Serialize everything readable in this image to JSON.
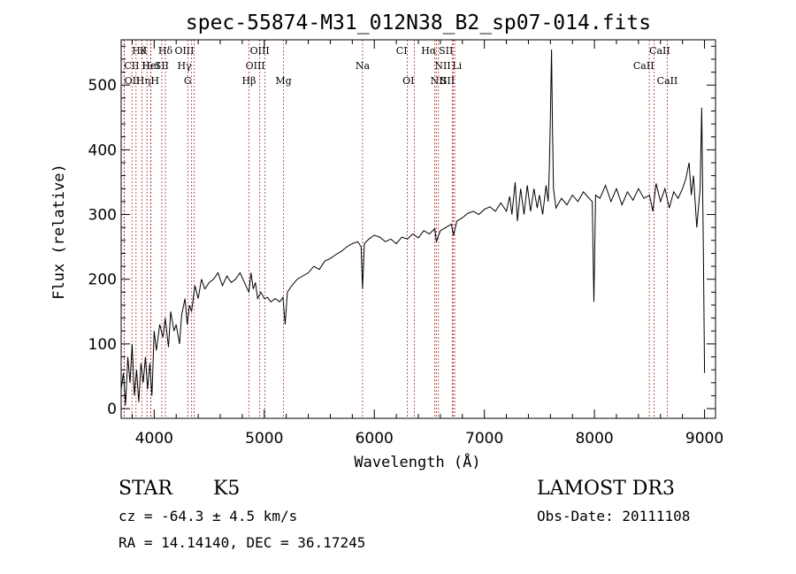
{
  "chart_data": {
    "type": "line",
    "title": "spec-55874-M31_012N38_B2_sp07-014.fits",
    "xlabel": "Wavelength (Å)",
    "ylabel": "Flux (relative)",
    "xlim": [
      3700,
      9100
    ],
    "ylim": [
      -15,
      570
    ],
    "xticks": [
      4000,
      5000,
      6000,
      7000,
      8000,
      9000
    ],
    "yticks": [
      0,
      100,
      200,
      300,
      400,
      500
    ],
    "grid": false,
    "series": [
      {
        "points": [
          [
            3700,
            30
          ],
          [
            3720,
            55
          ],
          [
            3740,
            5
          ],
          [
            3760,
            80
          ],
          [
            3780,
            40
          ],
          [
            3800,
            100
          ],
          [
            3820,
            20
          ],
          [
            3840,
            60
          ],
          [
            3860,
            10
          ],
          [
            3880,
            70
          ],
          [
            3900,
            40
          ],
          [
            3920,
            80
          ],
          [
            3940,
            30
          ],
          [
            3960,
            70
          ],
          [
            3980,
            20
          ],
          [
            4000,
            120
          ],
          [
            4020,
            90
          ],
          [
            4050,
            130
          ],
          [
            4080,
            110
          ],
          [
            4100,
            140
          ],
          [
            4130,
            95
          ],
          [
            4150,
            150
          ],
          [
            4180,
            120
          ],
          [
            4200,
            130
          ],
          [
            4230,
            100
          ],
          [
            4250,
            145
          ],
          [
            4280,
            170
          ],
          [
            4300,
            130
          ],
          [
            4320,
            160
          ],
          [
            4340,
            150
          ],
          [
            4370,
            190
          ],
          [
            4400,
            170
          ],
          [
            4430,
            200
          ],
          [
            4460,
            185
          ],
          [
            4500,
            195
          ],
          [
            4540,
            200
          ],
          [
            4580,
            210
          ],
          [
            4620,
            190
          ],
          [
            4660,
            205
          ],
          [
            4700,
            195
          ],
          [
            4740,
            200
          ],
          [
            4780,
            210
          ],
          [
            4820,
            195
          ],
          [
            4860,
            180
          ],
          [
            4880,
            210
          ],
          [
            4900,
            185
          ],
          [
            4920,
            195
          ],
          [
            4940,
            170
          ],
          [
            4970,
            180
          ],
          [
            5000,
            170
          ],
          [
            5030,
            172
          ],
          [
            5060,
            165
          ],
          [
            5100,
            170
          ],
          [
            5140,
            165
          ],
          [
            5170,
            172
          ],
          [
            5190,
            130
          ],
          [
            5210,
            180
          ],
          [
            5250,
            190
          ],
          [
            5300,
            200
          ],
          [
            5350,
            205
          ],
          [
            5400,
            210
          ],
          [
            5450,
            220
          ],
          [
            5500,
            215
          ],
          [
            5550,
            228
          ],
          [
            5600,
            232
          ],
          [
            5650,
            238
          ],
          [
            5700,
            243
          ],
          [
            5750,
            250
          ],
          [
            5800,
            255
          ],
          [
            5850,
            258
          ],
          [
            5880,
            250
          ],
          [
            5893,
            185
          ],
          [
            5910,
            255
          ],
          [
            5950,
            262
          ],
          [
            6000,
            268
          ],
          [
            6050,
            265
          ],
          [
            6100,
            258
          ],
          [
            6150,
            262
          ],
          [
            6200,
            255
          ],
          [
            6250,
            265
          ],
          [
            6300,
            262
          ],
          [
            6350,
            270
          ],
          [
            6400,
            264
          ],
          [
            6450,
            275
          ],
          [
            6500,
            270
          ],
          [
            6550,
            278
          ],
          [
            6563,
            258
          ],
          [
            6600,
            275
          ],
          [
            6650,
            280
          ],
          [
            6700,
            285
          ],
          [
            6720,
            268
          ],
          [
            6750,
            290
          ],
          [
            6800,
            295
          ],
          [
            6850,
            302
          ],
          [
            6900,
            305
          ],
          [
            6950,
            300
          ],
          [
            7000,
            308
          ],
          [
            7050,
            312
          ],
          [
            7100,
            305
          ],
          [
            7150,
            318
          ],
          [
            7200,
            305
          ],
          [
            7230,
            328
          ],
          [
            7250,
            300
          ],
          [
            7280,
            350
          ],
          [
            7300,
            290
          ],
          [
            7330,
            340
          ],
          [
            7360,
            300
          ],
          [
            7390,
            345
          ],
          [
            7420,
            305
          ],
          [
            7450,
            340
          ],
          [
            7480,
            310
          ],
          [
            7500,
            330
          ],
          [
            7530,
            300
          ],
          [
            7560,
            345
          ],
          [
            7580,
            320
          ],
          [
            7590,
            370
          ],
          [
            7600,
            450
          ],
          [
            7610,
            555
          ],
          [
            7618,
            440
          ],
          [
            7628,
            340
          ],
          [
            7650,
            310
          ],
          [
            7700,
            325
          ],
          [
            7750,
            315
          ],
          [
            7800,
            330
          ],
          [
            7850,
            320
          ],
          [
            7900,
            335
          ],
          [
            7950,
            325
          ],
          [
            7980,
            320
          ],
          [
            7995,
            165
          ],
          [
            8010,
            330
          ],
          [
            8050,
            325
          ],
          [
            8100,
            345
          ],
          [
            8150,
            320
          ],
          [
            8200,
            340
          ],
          [
            8250,
            315
          ],
          [
            8300,
            335
          ],
          [
            8350,
            322
          ],
          [
            8400,
            340
          ],
          [
            8450,
            325
          ],
          [
            8500,
            330
          ],
          [
            8530,
            305
          ],
          [
            8560,
            348
          ],
          [
            8600,
            320
          ],
          [
            8640,
            340
          ],
          [
            8680,
            310
          ],
          [
            8720,
            335
          ],
          [
            8760,
            325
          ],
          [
            8800,
            340
          ],
          [
            8830,
            355
          ],
          [
            8860,
            380
          ],
          [
            8880,
            330
          ],
          [
            8900,
            360
          ],
          [
            8930,
            280
          ],
          [
            8960,
            340
          ],
          [
            8975,
            465
          ],
          [
            8990,
            240
          ],
          [
            9000,
            55
          ]
        ]
      }
    ],
    "lines": [
      {
        "label": "Hθ",
        "x": 3798,
        "row": 0,
        "pos": "right"
      },
      {
        "label": "CII",
        "x": 3727,
        "row": 1,
        "pos": "right"
      },
      {
        "label": "OII",
        "x": 3729,
        "row": 2,
        "pos": "right"
      },
      {
        "label": "K",
        "x": 3934,
        "row": 0,
        "pos": "left"
      },
      {
        "label": "Hε",
        "x": 3889,
        "row": 1,
        "pos": "right"
      },
      {
        "label": "Hη",
        "x": 3835,
        "row": 2,
        "pos": "right"
      },
      {
        "label": "HeI",
        "x": 3970,
        "row": 1,
        "pos": "center"
      },
      {
        "label": "H",
        "x": 3968,
        "row": 2,
        "pos": "right"
      },
      {
        "label": "Hδ",
        "x": 4102,
        "row": 0,
        "pos": "center"
      },
      {
        "label": "SII",
        "x": 4069,
        "row": 1,
        "pos": "center"
      },
      {
        "label": "OIII",
        "x": 4363,
        "row": 0,
        "pos": "left"
      },
      {
        "label": "Hγ",
        "x": 4340,
        "row": 1,
        "pos": "left"
      },
      {
        "label": "G",
        "x": 4305,
        "row": 2,
        "pos": "center"
      },
      {
        "label": "OIII",
        "x": 4959,
        "row": 0,
        "pos": "center"
      },
      {
        "label": "OIII",
        "x": 5007,
        "row": 1,
        "pos": "left"
      },
      {
        "label": "Hβ",
        "x": 4861,
        "row": 2,
        "pos": "center"
      },
      {
        "label": "Mg",
        "x": 5175,
        "row": 2,
        "pos": "center"
      },
      {
        "label": "Na",
        "x": 5893,
        "row": 1,
        "pos": "center"
      },
      {
        "label": "CI",
        "x": 6300,
        "row": 0,
        "pos": "left"
      },
      {
        "label": "OI",
        "x": 6364,
        "row": 2,
        "pos": "left"
      },
      {
        "label": "Hα",
        "x": 6563,
        "row": 0,
        "pos": "left"
      },
      {
        "label": "NII",
        "x": 6548,
        "row": 1,
        "pos": "right"
      },
      {
        "label": "NII",
        "x": 6583,
        "row": 2,
        "pos": "center"
      },
      {
        "label": "SII",
        "x": 6716,
        "row": 0,
        "pos": "left"
      },
      {
        "label": "Li",
        "x": 6708,
        "row": 1,
        "pos": "right"
      },
      {
        "label": "SII",
        "x": 6731,
        "row": 2,
        "pos": "left"
      },
      {
        "label": "CaII",
        "x": 8498,
        "row": 0,
        "pos": "right"
      },
      {
        "label": "CaII",
        "x": 8542,
        "row": 1,
        "pos": "left"
      },
      {
        "label": "CaII",
        "x": 8662,
        "row": 2,
        "pos": "center"
      }
    ]
  },
  "info": {
    "class": "STAR",
    "subclass": "K5",
    "survey": "LAMOST DR3",
    "cz": "cz = -64.3 ± 4.5 km/s",
    "obs_date": "Obs-Date: 20111108",
    "coords": "RA =  14.14140, DEC =  36.17245"
  }
}
